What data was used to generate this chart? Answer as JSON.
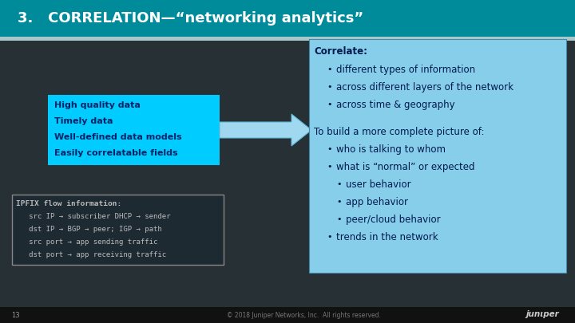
{
  "title": "3.   CORRELATION—“networking analytics”",
  "title_bg": "#008B9A",
  "title_color": "#FFFFFF",
  "slide_bg": "#2a3a42",
  "header_stripe_color": "#a8c8cc",
  "left_box_color": "#00CCFF",
  "left_box_text_color": "#002266",
  "left_box_lines": [
    "High quality data",
    "Timely data",
    "Well-defined data models",
    "Easily correlatable fields"
  ],
  "ipfix_text_color": "#bbbbbb",
  "ipfix_lines": [
    "IPFIX flow information:",
    "   src IP → subscriber DHCP → sender",
    "   dst IP → BGP → peer; IGP → path",
    "   src port → app sending traffic",
    "   dst port → app receiving traffic"
  ],
  "right_box_color": "#87CEEB",
  "right_box_text_color": "#001a4d",
  "right_box_content": [
    {
      "text": "Correlate:",
      "indent": 0,
      "bold": true,
      "bullet": false
    },
    {
      "text": "different types of information",
      "indent": 1,
      "bold": false,
      "bullet": true
    },
    {
      "text": "across different layers of the network",
      "indent": 1,
      "bold": false,
      "bullet": true
    },
    {
      "text": "across time & geography",
      "indent": 1,
      "bold": false,
      "bullet": true
    },
    {
      "text": "",
      "indent": 0,
      "bold": false,
      "bullet": false
    },
    {
      "text": "To build a more complete picture of:",
      "indent": 0,
      "bold": false,
      "bullet": false
    },
    {
      "text": "who is talking to whom",
      "indent": 1,
      "bold": false,
      "bullet": true
    },
    {
      "text": "what is “normal” or expected",
      "indent": 1,
      "bold": false,
      "bullet": true
    },
    {
      "text": "user behavior",
      "indent": 2,
      "bold": false,
      "bullet": true
    },
    {
      "text": "app behavior",
      "indent": 2,
      "bold": false,
      "bullet": true
    },
    {
      "text": "peer/cloud behavior",
      "indent": 2,
      "bold": false,
      "bullet": true
    },
    {
      "text": "trends in the network",
      "indent": 1,
      "bold": false,
      "bullet": true
    }
  ],
  "footer_text": "© 2018 Juniper Networks, Inc.  All rights reserved.",
  "page_number": "13"
}
